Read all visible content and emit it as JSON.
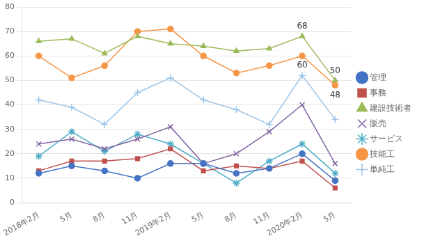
{
  "chart_data": {
    "type": "line",
    "categories": [
      "2018年2月",
      "5月",
      "8月",
      "11月",
      "2019年2月",
      "5月",
      "8月",
      "11月",
      "2020年2月",
      "5月"
    ],
    "series": [
      {
        "name": "管理",
        "color": "#4472C4",
        "marker": "circle",
        "values": [
          12,
          15,
          13,
          10,
          16,
          16,
          12,
          14,
          20,
          9
        ]
      },
      {
        "name": "事務",
        "color": "#C0504D",
        "marker": "square",
        "values": [
          13,
          17,
          17,
          18,
          22,
          13,
          15,
          14,
          17,
          6
        ]
      },
      {
        "name": "建設技術者",
        "color": "#9BBB59",
        "marker": "triangle",
        "values": [
          66,
          67,
          61,
          68,
          65,
          64,
          62,
          63,
          68,
          50
        ]
      },
      {
        "name": "販売",
        "color": "#8064A2",
        "marker": "x",
        "values": [
          24,
          26,
          22,
          26,
          31,
          16,
          20,
          29,
          40,
          16
        ]
      },
      {
        "name": "サービス",
        "color": "#4BACC6",
        "marker": "star",
        "values": [
          19,
          29,
          21,
          28,
          24,
          16,
          8,
          17,
          24,
          12
        ]
      },
      {
        "name": "技能工",
        "color": "#F79646",
        "marker": "circle",
        "values": [
          60,
          51,
          56,
          70,
          71,
          60,
          53,
          56,
          60,
          48
        ]
      },
      {
        "name": "単純工",
        "color": "#9DC3E6",
        "marker": "plus",
        "values": [
          42,
          39,
          32,
          45,
          51,
          42,
          38,
          32,
          52,
          34
        ]
      }
    ],
    "annotations": [
      {
        "text": "68",
        "series": "建設技術者",
        "index": 8,
        "position": "above"
      },
      {
        "text": "60",
        "series": "技能工",
        "index": 8,
        "position": "below"
      },
      {
        "text": "48",
        "series": "技能工",
        "index": 9,
        "position": "below"
      },
      {
        "text": "50",
        "series": "建設技術者",
        "index": 9,
        "position": "above"
      }
    ],
    "ylim": [
      0,
      80
    ],
    "yticks": [
      0,
      10,
      20,
      30,
      40,
      50,
      60,
      70,
      80
    ],
    "grid": true,
    "legend": "right"
  }
}
